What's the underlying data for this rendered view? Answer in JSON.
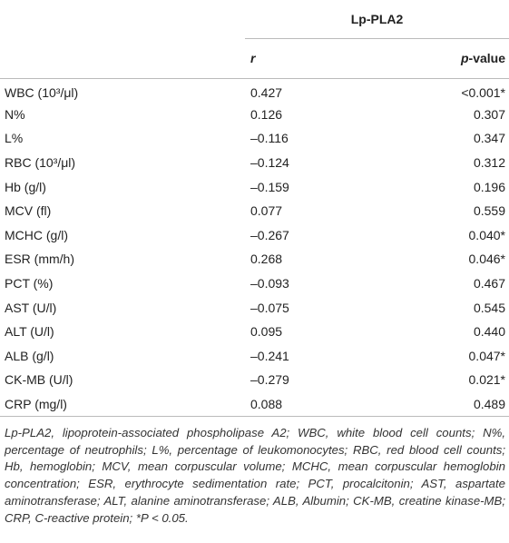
{
  "table": {
    "header": {
      "group": "Lp-PLA2",
      "columns": [
        "r",
        "p-value"
      ]
    },
    "rows": [
      [
        "WBC (10³/μl)",
        "0.427",
        "<0.001*"
      ],
      [
        "N%",
        "0.126",
        "0.307"
      ],
      [
        "L%",
        "–0.116",
        "0.347"
      ],
      [
        "RBC (10³/μl)",
        "–0.124",
        "0.312"
      ],
      [
        "Hb (g/l)",
        "–0.159",
        "0.196"
      ],
      [
        "MCV (fl)",
        "0.077",
        "0.559"
      ],
      [
        "MCHC (g/l)",
        "–0.267",
        "0.040*"
      ],
      [
        "ESR (mm/h)",
        "0.268",
        "0.046*"
      ],
      [
        "PCT (%)",
        "–0.093",
        "0.467"
      ],
      [
        "AST (U/l)",
        "–0.075",
        "0.545"
      ],
      [
        "ALT (U/l)",
        "0.095",
        "0.440"
      ],
      [
        "ALB (g/l)",
        "–0.241",
        "0.047*"
      ],
      [
        "CK-MB (U/l)",
        "–0.279",
        "0.021*"
      ],
      [
        "CRP (mg/l)",
        "0.088",
        "0.489"
      ]
    ]
  },
  "footnote": "Lp-PLA2, lipoprotein-associated phospholipase A2; WBC, white blood cell counts; N%, percentage of neutrophils; L%, percentage of leukomonocytes; RBC, red blood cell counts; Hb, hemoglobin; MCV, mean corpuscular volume; MCHC, mean corpuscular hemoglobin concentration; ESR, erythrocyte sedimentation rate; PCT, procalcitonin; AST, aspartate aminotransferase; ALT, alanine aminotransferase; ALB, Albumin; CK-MB, creatine kinase-MB; CRP, C-reactive protein; *P < 0.05."
}
